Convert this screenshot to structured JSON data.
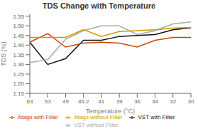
{
  "chart_data": {
    "type": "line",
    "title": "TDS Change with Temperature",
    "x_label": "Temperature (°C)",
    "y_label": "TDS (%)",
    "categories": [
      "63",
      "53",
      "49",
      "45.2",
      "41",
      "39",
      "36",
      "34",
      "32",
      "30"
    ],
    "series": [
      {
        "name": "VST with Filter",
        "color": "#111111",
        "values": [
          1.415,
          1.3,
          1.33,
          1.425,
          1.425,
          1.445,
          1.45,
          1.455,
          1.48,
          1.49
        ]
      },
      {
        "name": "Atago with Filter",
        "color": "#cc4400",
        "values": [
          1.415,
          1.46,
          1.39,
          1.41,
          1.415,
          1.41,
          1.39,
          1.425,
          1.44,
          1.44
        ]
      },
      {
        "name": "VST without Filter",
        "color": "#aaaaaa",
        "values": [
          1.31,
          1.325,
          1.43,
          1.475,
          1.5,
          1.5,
          1.455,
          1.475,
          1.51,
          1.52
        ]
      },
      {
        "name": "Atago without Filter",
        "color": "#cc9900",
        "values": [
          1.44,
          1.44,
          1.44,
          1.48,
          1.445,
          1.47,
          1.475,
          1.48,
          1.488,
          1.492
        ]
      }
    ],
    "ylim": [
      1.15,
      1.56
    ],
    "yticks": [
      1.15,
      {
        "value": 1.2,
        "label": "1.20"
      },
      1.25,
      {
        "value": 1.3,
        "label": "1.30"
      },
      1.35,
      {
        "value": 1.4,
        "label": "1.40"
      },
      1.45,
      {
        "value": 1.5,
        "label": "1.50"
      },
      1.55
    ],
    "grid": false,
    "legend": "bottom"
  }
}
